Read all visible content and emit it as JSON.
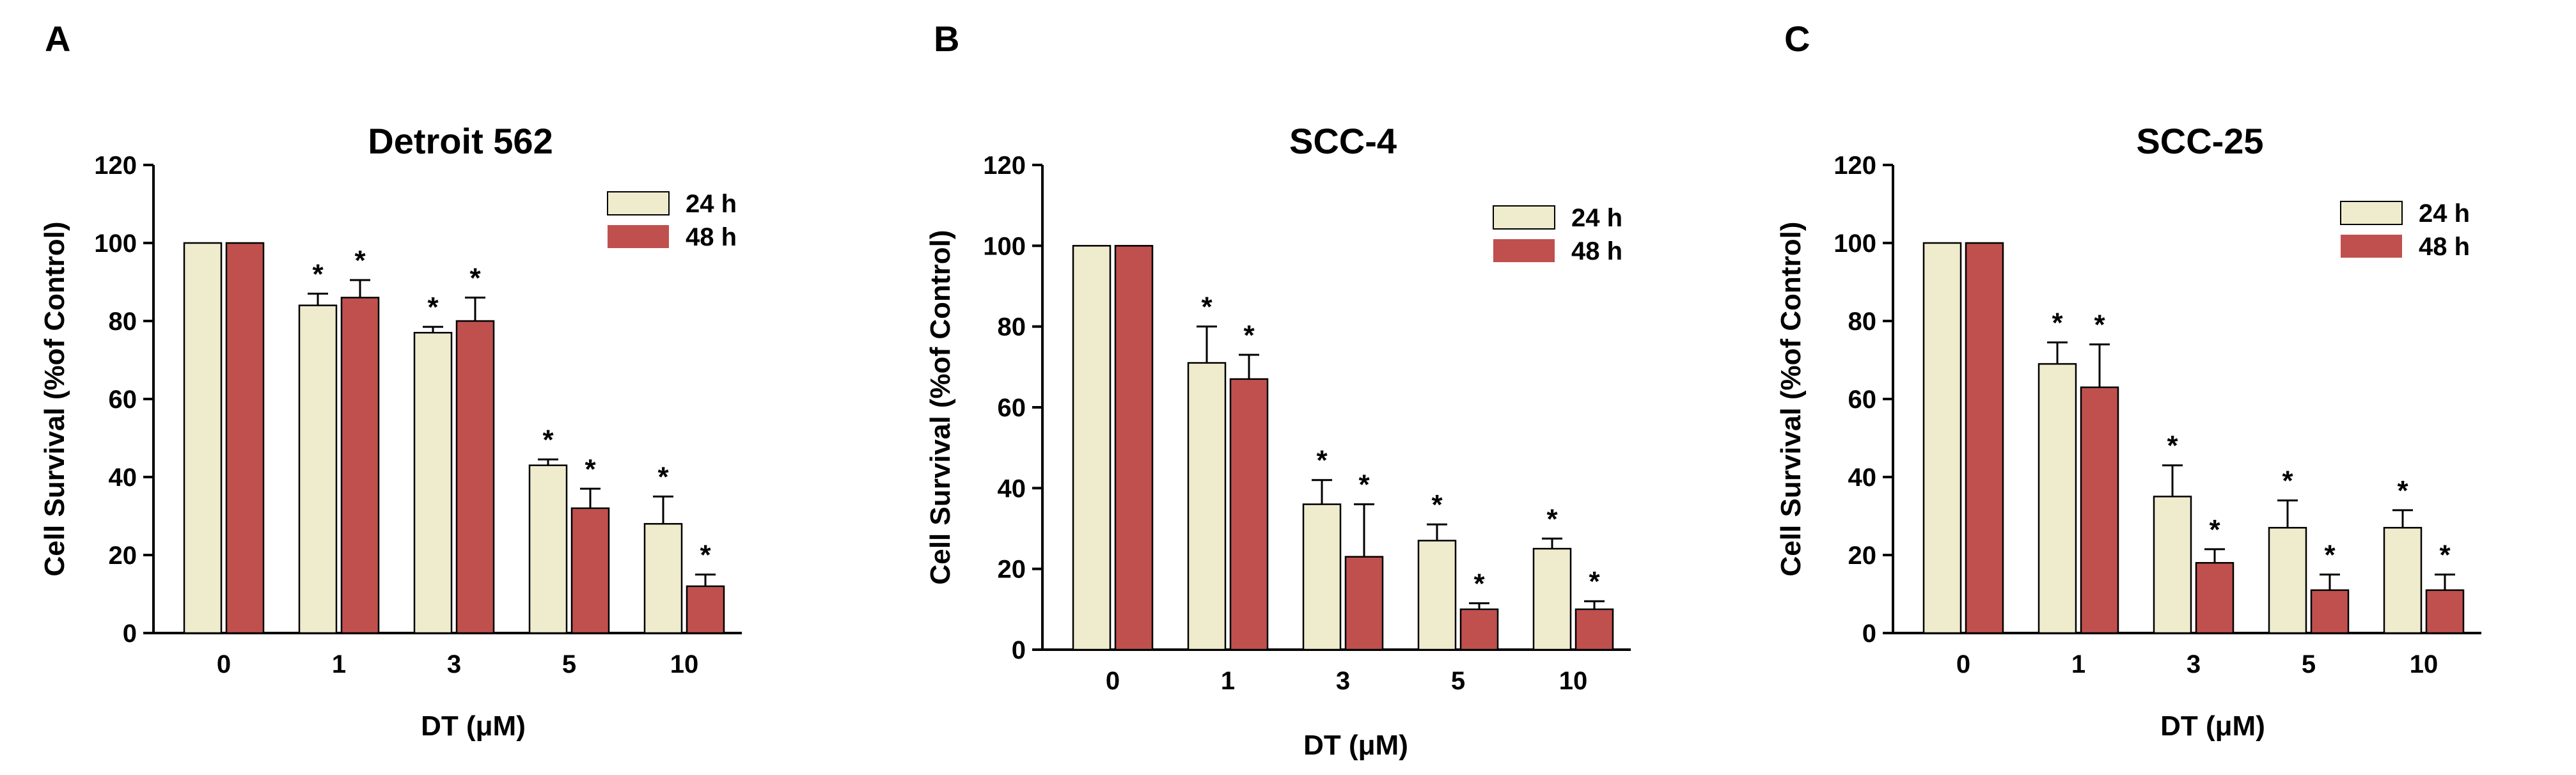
{
  "colors": {
    "series_24h": "#efebcd",
    "series_48h": "#c0504d",
    "axis": "#000000"
  },
  "chart_data": [
    {
      "panel": "A",
      "type": "bar",
      "title": "Detroit 562",
      "xlabel": "DT (μM)",
      "ylabel": "Cell Survival (%of Control)",
      "ylim": [
        0,
        120
      ],
      "yticks": [
        0,
        20,
        40,
        60,
        80,
        100,
        120
      ],
      "categories": [
        "0",
        "1",
        "3",
        "5",
        "10"
      ],
      "legend_position": "top-right",
      "series": [
        {
          "name": "24 h",
          "values": [
            100,
            84,
            77,
            43,
            28
          ],
          "errors": [
            0,
            3,
            1.5,
            1.5,
            7
          ],
          "significant": [
            false,
            true,
            true,
            true,
            true
          ]
        },
        {
          "name": "48 h",
          "values": [
            100,
            86,
            80,
            32,
            12
          ],
          "errors": [
            0,
            4.5,
            6,
            5,
            3
          ],
          "significant": [
            false,
            true,
            true,
            true,
            true
          ]
        }
      ]
    },
    {
      "panel": "B",
      "type": "bar",
      "title": "SCC-4",
      "xlabel": "DT (μM)",
      "ylabel": "Cell Survival (%of Control)",
      "ylim": [
        0,
        120
      ],
      "yticks": [
        0,
        20,
        40,
        60,
        80,
        100,
        120
      ],
      "categories": [
        "0",
        "1",
        "3",
        "5",
        "10"
      ],
      "legend_position": "top-right",
      "series": [
        {
          "name": "24 h",
          "values": [
            100,
            71,
            36,
            27,
            25
          ],
          "errors": [
            0,
            9,
            6,
            4,
            2.5
          ],
          "significant": [
            false,
            true,
            true,
            true,
            true
          ]
        },
        {
          "name": "48 h",
          "values": [
            100,
            67,
            23,
            10,
            10
          ],
          "errors": [
            0,
            6,
            13,
            1.5,
            2
          ],
          "significant": [
            false,
            true,
            true,
            true,
            true
          ]
        }
      ]
    },
    {
      "panel": "C",
      "type": "bar",
      "title": "SCC-25",
      "xlabel": "DT (μM)",
      "ylabel": "Cell Survival (%of Control)",
      "ylim": [
        0,
        120
      ],
      "yticks": [
        0,
        20,
        40,
        60,
        80,
        100,
        120
      ],
      "categories": [
        "0",
        "1",
        "3",
        "5",
        "10"
      ],
      "legend_position": "top-right",
      "series": [
        {
          "name": "24 h",
          "values": [
            100,
            69,
            35,
            27,
            27
          ],
          "errors": [
            0,
            5.5,
            8,
            7,
            4.5
          ],
          "significant": [
            false,
            true,
            true,
            true,
            true
          ]
        },
        {
          "name": "48 h",
          "values": [
            100,
            63,
            18,
            11,
            11
          ],
          "errors": [
            0,
            11,
            3.5,
            4,
            4
          ],
          "significant": [
            false,
            true,
            true,
            true,
            true
          ]
        }
      ]
    }
  ]
}
